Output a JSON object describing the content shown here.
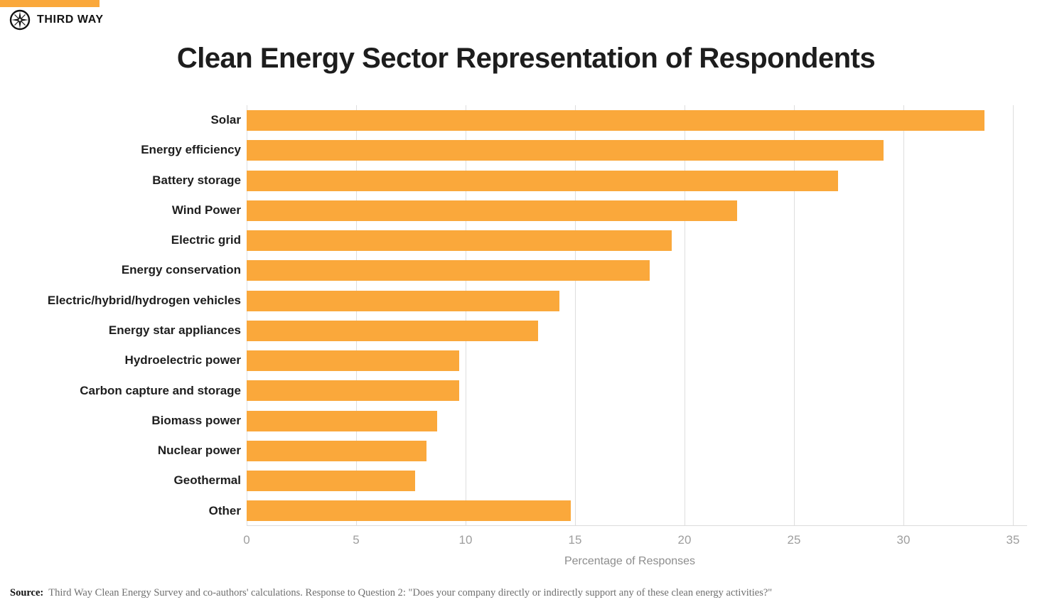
{
  "brand": {
    "name": "THIRD WAY",
    "logo_icon": "compass-star-icon",
    "accent_color": "#FAA83B"
  },
  "title": "Clean Energy Sector Representation of Respondents",
  "chart_data": {
    "type": "bar",
    "orientation": "horizontal",
    "title": "Clean Energy Sector Representation of Respondents",
    "categories": [
      "Solar",
      "Energy efficiency",
      "Battery storage",
      "Wind Power",
      "Electric grid",
      "Energy conservation",
      "Electric/hybrid/hydrogen vehicles",
      "Energy star appliances",
      "Hydroelectric power",
      "Carbon capture and storage",
      "Biomass power",
      "Nuclear power",
      "Geothermal",
      "Other"
    ],
    "values": [
      33.7,
      29.1,
      27.0,
      22.4,
      19.4,
      18.4,
      14.3,
      13.3,
      9.7,
      9.7,
      8.7,
      8.2,
      7.7,
      14.8
    ],
    "bar_color": "#FAA83B",
    "xlabel": "Percentage of Responses",
    "ylabel": "",
    "xlim": [
      0,
      35
    ],
    "xticks": [
      0,
      5,
      10,
      15,
      20,
      25,
      30,
      35
    ],
    "grid": "vertical-gridlines-on",
    "legend": "none"
  },
  "source": {
    "label": "Source:",
    "text": "Third Way Clean Energy Survey and co-authors' calculations. Response to Question 2: \"Does your company directly or indirectly support any of these clean energy activities?\""
  }
}
